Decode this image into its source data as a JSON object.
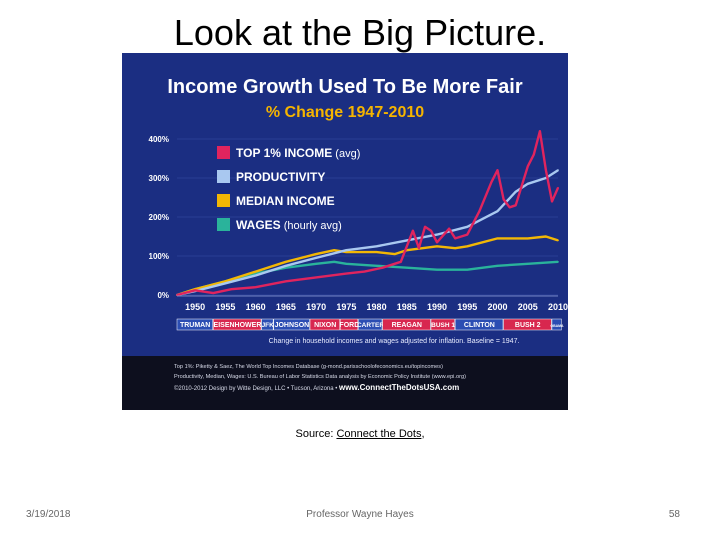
{
  "slide": {
    "title": "Look at the Big Picture.",
    "source_prefix": "Source: ",
    "source_link": "Connect the Dots",
    "source_suffix": ",",
    "date": "3/19/2018",
    "author": "Professor Wayne Hayes",
    "page": "58"
  },
  "colors": {
    "background": "#1b2e82",
    "top1": "#e0245e",
    "productivity": "#a9c8f0",
    "median": "#f2b705",
    "wages": "#2ab39b",
    "title": "#ffffff",
    "subtitle": "#f5b400"
  },
  "chart_data": {
    "type": "line",
    "title": "Income Growth Used To Be More Fair",
    "subtitle": "% Change 1947-2010",
    "ylim": [
      0,
      400
    ],
    "y_ticks": [
      "0%",
      "100%",
      "200%",
      "300%",
      "400%"
    ],
    "y_tick_values": [
      0,
      100,
      200,
      300,
      400
    ],
    "xlim": [
      1947,
      2010
    ],
    "x_ticks": [
      "1950",
      "1955",
      "1960",
      "1965",
      "1970",
      "1975",
      "1980",
      "1985",
      "1990",
      "1995",
      "2000",
      "2005",
      "2010"
    ],
    "x_tick_values": [
      1950,
      1955,
      1960,
      1965,
      1970,
      1975,
      1980,
      1985,
      1990,
      1995,
      2000,
      2005,
      2010
    ],
    "legend_position": "top-left",
    "series": [
      {
        "key": "top1",
        "name": "TOP 1% INCOME",
        "name_suffix": " (avg)",
        "x": [
          1947,
          1950,
          1953,
          1956,
          1960,
          1965,
          1970,
          1975,
          1978,
          1981,
          1984,
          1986,
          1987,
          1988,
          1989,
          1990,
          1992,
          1993,
          1995,
          1997,
          1999,
          2000,
          2001,
          2002,
          2003,
          2005,
          2006,
          2007,
          2008,
          2009,
          2010
        ],
        "y": [
          0,
          12,
          5,
          15,
          20,
          35,
          45,
          55,
          60,
          70,
          85,
          165,
          120,
          175,
          165,
          135,
          170,
          145,
          155,
          215,
          290,
          320,
          245,
          225,
          230,
          330,
          360,
          420,
          320,
          240,
          275
        ]
      },
      {
        "key": "productivity",
        "name": "PRODUCTIVITY",
        "name_suffix": "",
        "x": [
          1947,
          1950,
          1955,
          1960,
          1965,
          1970,
          1975,
          1980,
          1985,
          1990,
          1995,
          2000,
          2003,
          2005,
          2008,
          2010
        ],
        "y": [
          0,
          10,
          30,
          50,
          75,
          95,
          115,
          125,
          140,
          155,
          175,
          215,
          265,
          285,
          300,
          320
        ]
      },
      {
        "key": "median",
        "name": "MEDIAN INCOME",
        "name_suffix": "",
        "x": [
          1947,
          1950,
          1955,
          1960,
          1965,
          1970,
          1973,
          1975,
          1980,
          1983,
          1985,
          1990,
          1993,
          1995,
          2000,
          2005,
          2008,
          2010
        ],
        "y": [
          0,
          15,
          35,
          60,
          85,
          105,
          115,
          110,
          110,
          105,
          115,
          125,
          120,
          125,
          145,
          145,
          150,
          140
        ]
      },
      {
        "key": "wages",
        "name": "WAGES",
        "name_suffix": " (hourly avg)",
        "x": [
          1947,
          1950,
          1955,
          1960,
          1965,
          1970,
          1973,
          1975,
          1980,
          1985,
          1990,
          1995,
          2000,
          2005,
          2010
        ],
        "y": [
          0,
          15,
          35,
          55,
          70,
          80,
          85,
          80,
          75,
          70,
          65,
          65,
          75,
          80,
          85
        ]
      }
    ],
    "presidents": [
      {
        "name": "TRUMAN",
        "from": 1947,
        "to": 1953,
        "party": "D"
      },
      {
        "name": "EISENHOWER",
        "from": 1953,
        "to": 1961,
        "party": "R"
      },
      {
        "name": "JFK",
        "from": 1961,
        "to": 1963,
        "party": "D"
      },
      {
        "name": "JOHNSON",
        "from": 1963,
        "to": 1969,
        "party": "D"
      },
      {
        "name": "NIXON",
        "from": 1969,
        "to": 1974,
        "party": "R"
      },
      {
        "name": "FORD",
        "from": 1974,
        "to": 1977,
        "party": "R"
      },
      {
        "name": "CARTER",
        "from": 1977,
        "to": 1981,
        "party": "D"
      },
      {
        "name": "REAGAN",
        "from": 1981,
        "to": 1989,
        "party": "R"
      },
      {
        "name": "BUSH 1",
        "from": 1989,
        "to": 1993,
        "party": "R"
      },
      {
        "name": "CLINTON",
        "from": 1993,
        "to": 2001,
        "party": "D"
      },
      {
        "name": "BUSH 2",
        "from": 2001,
        "to": 2009,
        "party": "R"
      },
      {
        "name": "OBAMA",
        "from": 2009,
        "to": 2012,
        "party": "D"
      }
    ],
    "party_colors": {
      "D": "#2b4db3",
      "R": "#d8274f"
    },
    "note": "Change in household incomes and wages adjusted for inflation. Baseline = 1947.",
    "credits": [
      "Top 1%: Piketty & Saez, The World Top Incomes Database (g-mond.parisschoolofeconomics.eu/topincomes)",
      "Productivity, Median, Wages: U.S. Bureau of Labor Statistics Data analysis by Economic Policy Institute (www.epi.org)"
    ],
    "credit_line_prefix": "©2010-2012 Design by Witte Design, LLC • Tucson, Arizona • ",
    "credit_url": "www.ConnectTheDotsUSA.com"
  }
}
